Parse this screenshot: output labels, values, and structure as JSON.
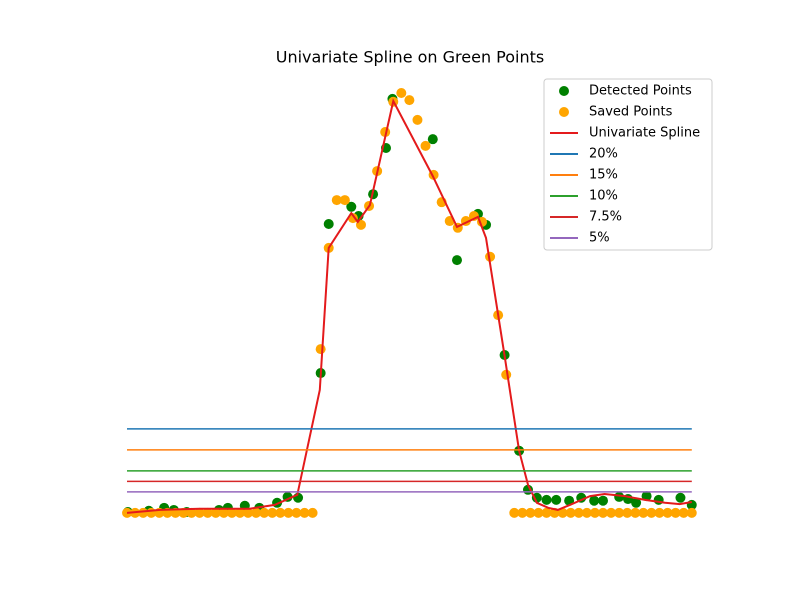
{
  "chart_data": {
    "type": "scatter",
    "title": "Univariate Spline on Green Points",
    "xlim": [
      -3.35,
      73.5
    ],
    "ylim": [
      -3.6,
      105
    ],
    "legend": "upper right",
    "series": [
      {
        "name": "Detected Points",
        "kind": "scatter",
        "color": "#008000",
        "x": [
          0.1,
          2.7,
          4.6,
          5.8,
          7.4,
          11.4,
          12.5,
          14.6,
          16.4,
          18.6,
          19.9,
          21.2,
          24.0,
          25.0,
          27.8,
          28.7,
          30.5,
          32.1,
          32.9,
          37.9,
          40.9,
          43.5,
          44.5,
          46.8,
          48.6,
          49.7,
          50.8,
          52.0,
          53.2,
          54.8,
          56.3,
          57.9,
          59.0,
          61.0,
          62.1,
          63.1,
          64.4,
          65.9,
          68.6,
          70.0
        ],
        "values": [
          0.2,
          0.5,
          1.2,
          0.7,
          0.2,
          0.7,
          1.2,
          1.7,
          1.2,
          2.4,
          3.8,
          3.6,
          33.3,
          68.8,
          72.9,
          70.7,
          75.9,
          86.9,
          98.6,
          89.0,
          60.2,
          71.2,
          68.6,
          37.6,
          14.8,
          5.5,
          3.6,
          3.1,
          3.1,
          2.9,
          3.6,
          2.9,
          2.9,
          3.8,
          3.3,
          2.4,
          4.0,
          3.1,
          3.6,
          1.9
        ]
      },
      {
        "name": "Saved Points",
        "kind": "scatter",
        "color": "#ffa500",
        "x": [
          0,
          1,
          2,
          3,
          4,
          5,
          6,
          7,
          8,
          9,
          10,
          11,
          12,
          13,
          14,
          15,
          16,
          17,
          18,
          19,
          20,
          21,
          22,
          23,
          24,
          25,
          26,
          27,
          28,
          29,
          30,
          31,
          32,
          33,
          34,
          35,
          36,
          37,
          38,
          39,
          40,
          41,
          42,
          43,
          44,
          45,
          46,
          47,
          48,
          49,
          50,
          51,
          52,
          53,
          54,
          55,
          56,
          57,
          58,
          59,
          60,
          61,
          62,
          63,
          64,
          65,
          66,
          67,
          68,
          69,
          70
        ],
        "values": [
          0,
          0,
          0,
          0,
          0,
          0,
          0,
          0,
          0,
          0,
          0,
          0,
          0,
          0,
          0,
          0,
          0,
          0,
          0,
          0,
          0,
          0,
          0,
          0,
          39.0,
          63.1,
          74.5,
          74.5,
          70.2,
          68.6,
          73.1,
          81.4,
          90.7,
          97.9,
          100,
          98.3,
          93.6,
          87.4,
          80.5,
          74.0,
          69.5,
          67.9,
          69.5,
          70.7,
          69.3,
          61.0,
          47.1,
          32.9,
          0,
          0,
          0,
          0,
          0,
          0,
          0,
          0,
          0,
          0,
          0,
          0,
          0,
          0,
          0,
          0,
          0,
          0,
          0,
          0,
          0,
          0,
          0
        ]
      },
      {
        "name": "Univariate Spline",
        "kind": "line",
        "color": "#e41a1c",
        "x": [
          0,
          4.1,
          9.0,
          15.2,
          18.3,
          21.1,
          23.9,
          25.0,
          27.8,
          28.6,
          30.1,
          33.0,
          37.9,
          40.9,
          43.5,
          44.5,
          46.8,
          48.6,
          49.7,
          50.8,
          52.2,
          53.4,
          54.9,
          57.4,
          59.2,
          61.7,
          64.2,
          66.7,
          68.5,
          70.0
        ],
        "values": [
          0,
          0.7,
          1.0,
          1.0,
          1.9,
          4.3,
          29.3,
          63.1,
          71.4,
          69.3,
          73.3,
          98.1,
          80.2,
          68.1,
          70.5,
          65.5,
          37.4,
          14.8,
          6.7,
          2.4,
          1.2,
          0.7,
          1.9,
          4.0,
          4.5,
          4.0,
          3.1,
          2.4,
          2.1,
          2.6
        ]
      },
      {
        "name": "20%",
        "kind": "hline",
        "color": "#1f77b4",
        "x": [
          0,
          70
        ],
        "values": [
          20,
          20
        ]
      },
      {
        "name": "15%",
        "kind": "hline",
        "color": "#ff7f0e",
        "x": [
          0,
          70
        ],
        "values": [
          15,
          15
        ]
      },
      {
        "name": "10%",
        "kind": "hline",
        "color": "#2ca02c",
        "x": [
          0,
          70
        ],
        "values": [
          10,
          10
        ]
      },
      {
        "name": "7.5%",
        "kind": "hline",
        "color": "#d62728",
        "x": [
          0,
          70
        ],
        "values": [
          7.5,
          7.5
        ]
      },
      {
        "name": "5%",
        "kind": "hline",
        "color": "#9467bd",
        "x": [
          0,
          70
        ],
        "values": [
          5,
          5
        ]
      }
    ]
  }
}
